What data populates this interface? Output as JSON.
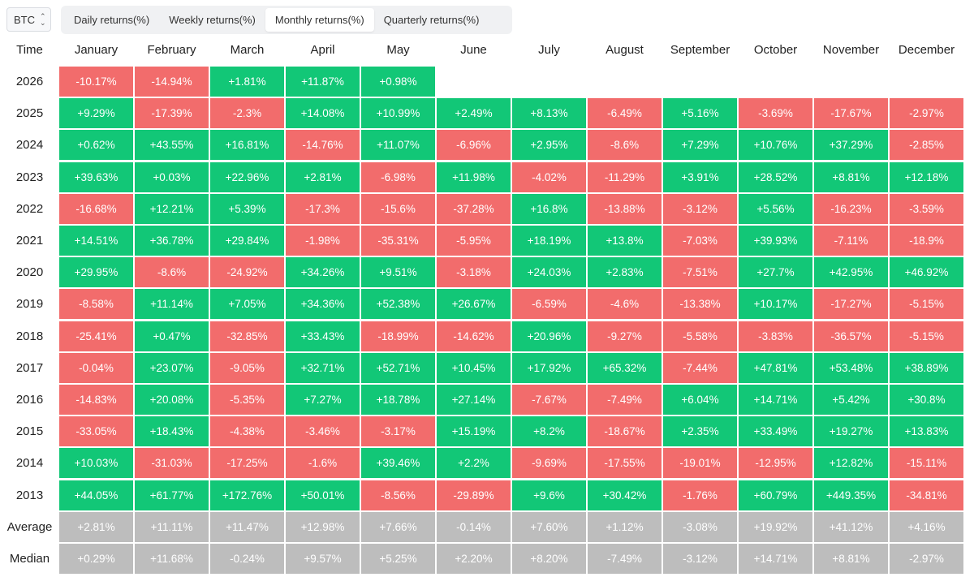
{
  "asset_selector": {
    "value": "BTC"
  },
  "tabs": [
    {
      "label": "Daily returns(%)",
      "active": false
    },
    {
      "label": "Weekly returns(%)",
      "active": false
    },
    {
      "label": "Monthly returns(%)",
      "active": true
    },
    {
      "label": "Quarterly returns(%)",
      "active": false
    }
  ],
  "colors": {
    "positive": "#12c777",
    "negative": "#f26c6c",
    "summary": "#bdbdbd"
  },
  "table": {
    "header_time": "Time",
    "months": [
      "January",
      "February",
      "March",
      "April",
      "May",
      "June",
      "July",
      "August",
      "September",
      "October",
      "November",
      "December"
    ],
    "rows": [
      {
        "year": "2026",
        "values": [
          "-10.17%",
          "-14.94%",
          "+1.81%",
          "+11.87%",
          "+0.98%"
        ]
      },
      {
        "year": "2025",
        "values": [
          "+9.29%",
          "-17.39%",
          "-2.3%",
          "+14.08%",
          "+10.99%",
          "+2.49%",
          "+8.13%",
          "-6.49%",
          "+5.16%",
          "-3.69%",
          "-17.67%",
          "-2.97%"
        ]
      },
      {
        "year": "2024",
        "values": [
          "+0.62%",
          "+43.55%",
          "+16.81%",
          "-14.76%",
          "+11.07%",
          "-6.96%",
          "+2.95%",
          "-8.6%",
          "+7.29%",
          "+10.76%",
          "+37.29%",
          "-2.85%"
        ]
      },
      {
        "year": "2023",
        "values": [
          "+39.63%",
          "+0.03%",
          "+22.96%",
          "+2.81%",
          "-6.98%",
          "+11.98%",
          "-4.02%",
          "-11.29%",
          "+3.91%",
          "+28.52%",
          "+8.81%",
          "+12.18%"
        ]
      },
      {
        "year": "2022",
        "values": [
          "-16.68%",
          "+12.21%",
          "+5.39%",
          "-17.3%",
          "-15.6%",
          "-37.28%",
          "+16.8%",
          "-13.88%",
          "-3.12%",
          "+5.56%",
          "-16.23%",
          "-3.59%"
        ]
      },
      {
        "year": "2021",
        "values": [
          "+14.51%",
          "+36.78%",
          "+29.84%",
          "-1.98%",
          "-35.31%",
          "-5.95%",
          "+18.19%",
          "+13.8%",
          "-7.03%",
          "+39.93%",
          "-7.11%",
          "-18.9%"
        ]
      },
      {
        "year": "2020",
        "values": [
          "+29.95%",
          "-8.6%",
          "-24.92%",
          "+34.26%",
          "+9.51%",
          "-3.18%",
          "+24.03%",
          "+2.83%",
          "-7.51%",
          "+27.7%",
          "+42.95%",
          "+46.92%"
        ]
      },
      {
        "year": "2019",
        "values": [
          "-8.58%",
          "+11.14%",
          "+7.05%",
          "+34.36%",
          "+52.38%",
          "+26.67%",
          "-6.59%",
          "-4.6%",
          "-13.38%",
          "+10.17%",
          "-17.27%",
          "-5.15%"
        ]
      },
      {
        "year": "2018",
        "values": [
          "-25.41%",
          "+0.47%",
          "-32.85%",
          "+33.43%",
          "-18.99%",
          "-14.62%",
          "+20.96%",
          "-9.27%",
          "-5.58%",
          "-3.83%",
          "-36.57%",
          "-5.15%"
        ]
      },
      {
        "year": "2017",
        "values": [
          "-0.04%",
          "+23.07%",
          "-9.05%",
          "+32.71%",
          "+52.71%",
          "+10.45%",
          "+17.92%",
          "+65.32%",
          "-7.44%",
          "+47.81%",
          "+53.48%",
          "+38.89%"
        ]
      },
      {
        "year": "2016",
        "values": [
          "-14.83%",
          "+20.08%",
          "-5.35%",
          "+7.27%",
          "+18.78%",
          "+27.14%",
          "-7.67%",
          "-7.49%",
          "+6.04%",
          "+14.71%",
          "+5.42%",
          "+30.8%"
        ]
      },
      {
        "year": "2015",
        "values": [
          "-33.05%",
          "+18.43%",
          "-4.38%",
          "-3.46%",
          "-3.17%",
          "+15.19%",
          "+8.2%",
          "-18.67%",
          "+2.35%",
          "+33.49%",
          "+19.27%",
          "+13.83%"
        ]
      },
      {
        "year": "2014",
        "values": [
          "+10.03%",
          "-31.03%",
          "-17.25%",
          "-1.6%",
          "+39.46%",
          "+2.2%",
          "-9.69%",
          "-17.55%",
          "-19.01%",
          "-12.95%",
          "+12.82%",
          "-15.11%"
        ]
      },
      {
        "year": "2013",
        "values": [
          "+44.05%",
          "+61.77%",
          "+172.76%",
          "+50.01%",
          "-8.56%",
          "-29.89%",
          "+9.6%",
          "+30.42%",
          "-1.76%",
          "+60.79%",
          "+449.35%",
          "-34.81%"
        ]
      }
    ],
    "summary": [
      {
        "label": "Average",
        "values": [
          "+2.81%",
          "+11.11%",
          "+11.47%",
          "+12.98%",
          "+7.66%",
          "-0.14%",
          "+7.60%",
          "+1.12%",
          "-3.08%",
          "+19.92%",
          "+41.12%",
          "+4.16%"
        ]
      },
      {
        "label": "Median",
        "values": [
          "+0.29%",
          "+11.68%",
          "-0.24%",
          "+9.57%",
          "+5.25%",
          "+2.20%",
          "+8.20%",
          "-7.49%",
          "-3.12%",
          "+14.71%",
          "+8.81%",
          "-2.97%"
        ]
      }
    ]
  }
}
